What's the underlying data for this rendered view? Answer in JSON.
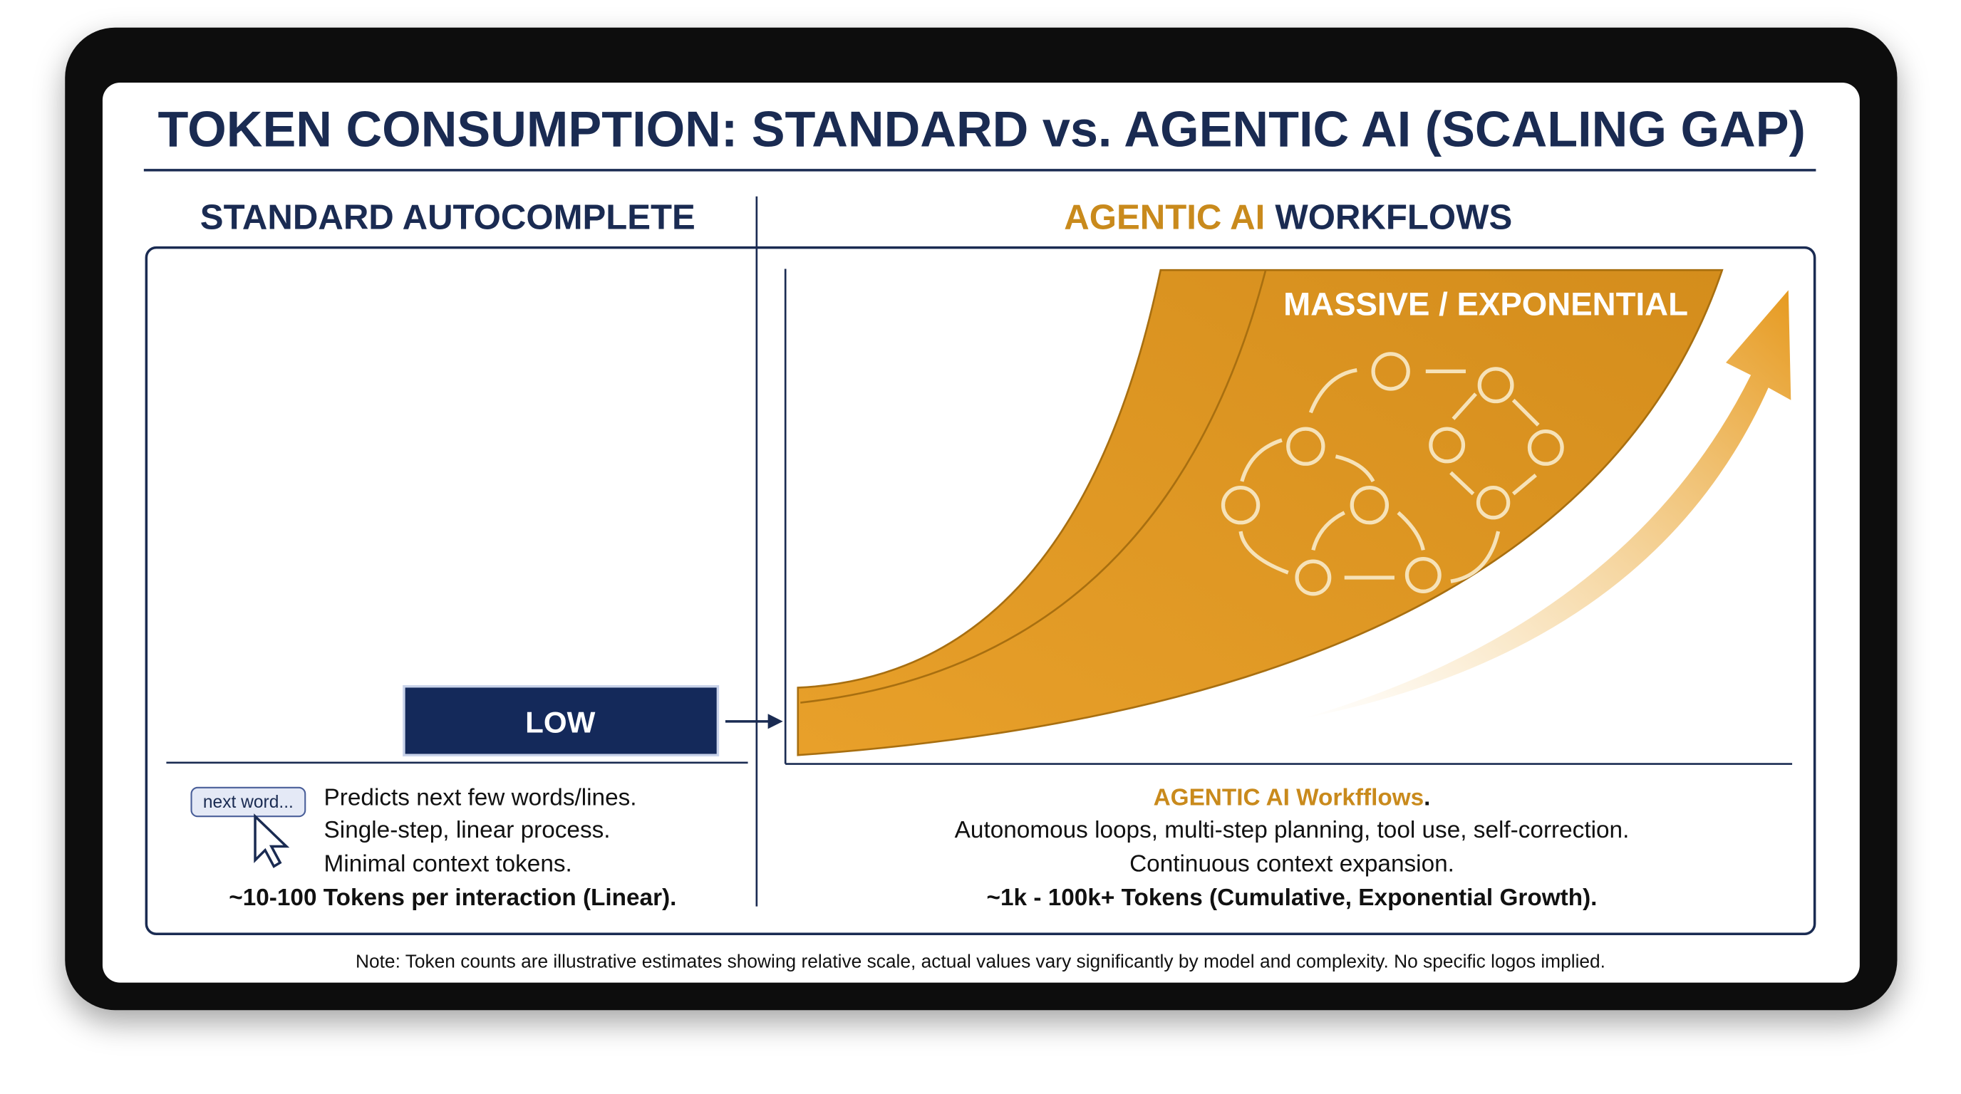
{
  "title": "TOKEN CONSUMPTION: STANDARD vs. AGENTIC AI (SCALING GAP)",
  "left": {
    "heading": "STANDARD AUTOCOMPLETE",
    "level": "LOW",
    "bubble": "next word...",
    "lines": [
      "Predicts next few words/lines.",
      "Single-step, linear process.",
      "Minimal context tokens."
    ],
    "summary": "~10-100 Tokens per interaction (Linear)."
  },
  "right": {
    "heading_highlight": "AGENTIC AI",
    "heading_rest": "WORKFLOWS",
    "level": "MASSIVE / EXPONENTIAL",
    "lead": "AGENTIC AI Workfflows",
    "lead_end": ".",
    "lines": [
      "Autonomous loops, multi-step planning, tool use, self-correction.",
      "Continuous context expansion."
    ],
    "summary": "~1k - 100k+ Tokens (Cumulative, Exponential Growth)."
  },
  "note": "Note: Token counts are illustrative estimates showing relative scale, actual values vary significantly by model and complexity. No specific logos implied."
}
